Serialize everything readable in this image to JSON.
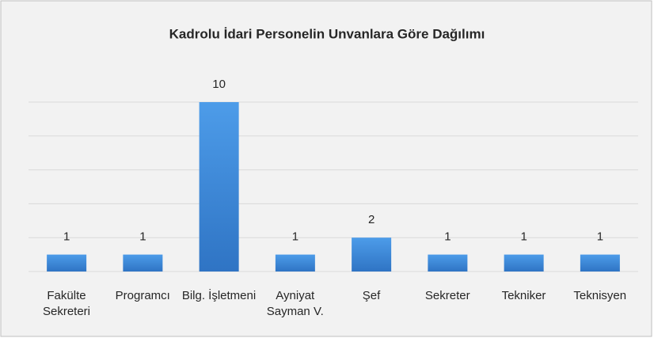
{
  "chart_data": {
    "type": "bar",
    "title": "Kadrolu İdari Personelin Unvanlara Göre Dağılımı",
    "categories": [
      "Fakülte Sekreteri",
      "Programcı",
      "Bilg. İşletmeni",
      "Ayniyat Sayman V.",
      "Şef",
      "Sekreter",
      "Tekniker",
      "Teknisyen"
    ],
    "values": [
      1,
      1,
      10,
      1,
      2,
      1,
      1,
      1
    ],
    "color": "#3f8fe0",
    "ylim": [
      0,
      10
    ],
    "yticks": [
      0,
      2,
      4,
      6,
      8,
      10
    ],
    "grid": true
  }
}
